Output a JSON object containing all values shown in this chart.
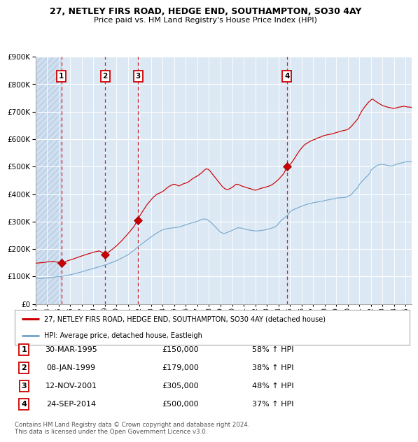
{
  "title1": "27, NETLEY FIRS ROAD, HEDGE END, SOUTHAMPTON, SO30 4AY",
  "title2": "Price paid vs. HM Land Registry's House Price Index (HPI)",
  "background_color": "#dce9f5",
  "grid_color": "#ffffff",
  "red_line_color": "#cc0000",
  "blue_line_color": "#7aaacc",
  "vline_color": "#cc0000",
  "purchase_dates_num": [
    1995.245,
    1999.025,
    2001.866,
    2014.731
  ],
  "purchase_prices": [
    150000,
    179000,
    305000,
    500000
  ],
  "purchase_labels": [
    "1",
    "2",
    "3",
    "4"
  ],
  "table_rows": [
    {
      "num": "1",
      "date": "30-MAR-1995",
      "price": "£150,000",
      "pct": "58% ↑ HPI"
    },
    {
      "num": "2",
      "date": "08-JAN-1999",
      "price": "£179,000",
      "pct": "38% ↑ HPI"
    },
    {
      "num": "3",
      "date": "12-NOV-2001",
      "price": "£305,000",
      "pct": "48% ↑ HPI"
    },
    {
      "num": "4",
      "date": "24-SEP-2014",
      "price": "£500,000",
      "pct": "37% ↑ HPI"
    }
  ],
  "legend1": "27, NETLEY FIRS ROAD, HEDGE END, SOUTHAMPTON, SO30 4AY (detached house)",
  "legend2": "HPI: Average price, detached house, Eastleigh",
  "footer": "Contains HM Land Registry data © Crown copyright and database right 2024.\nThis data is licensed under the Open Government Licence v3.0.",
  "ylim": [
    0,
    900000
  ],
  "xstart": 1993.0,
  "xend": 2025.5,
  "hpi_keypoints": [
    [
      1993.0,
      93000
    ],
    [
      1993.5,
      94000
    ],
    [
      1994.0,
      96000
    ],
    [
      1994.5,
      98000
    ],
    [
      1995.0,
      100000
    ],
    [
      1995.5,
      103000
    ],
    [
      1996.0,
      108000
    ],
    [
      1996.5,
      113000
    ],
    [
      1997.0,
      118000
    ],
    [
      1997.5,
      124000
    ],
    [
      1998.0,
      130000
    ],
    [
      1998.5,
      137000
    ],
    [
      1999.0,
      142000
    ],
    [
      1999.5,
      150000
    ],
    [
      2000.0,
      158000
    ],
    [
      2000.5,
      168000
    ],
    [
      2001.0,
      180000
    ],
    [
      2001.5,
      196000
    ],
    [
      2002.0,
      213000
    ],
    [
      2002.5,
      228000
    ],
    [
      2003.0,
      243000
    ],
    [
      2003.5,
      258000
    ],
    [
      2004.0,
      270000
    ],
    [
      2004.5,
      275000
    ],
    [
      2005.0,
      278000
    ],
    [
      2005.5,
      282000
    ],
    [
      2006.0,
      289000
    ],
    [
      2006.5,
      296000
    ],
    [
      2007.0,
      302000
    ],
    [
      2007.3,
      308000
    ],
    [
      2007.6,
      312000
    ],
    [
      2007.9,
      308000
    ],
    [
      2008.2,
      298000
    ],
    [
      2008.5,
      285000
    ],
    [
      2008.8,
      272000
    ],
    [
      2009.0,
      263000
    ],
    [
      2009.3,
      258000
    ],
    [
      2009.6,
      263000
    ],
    [
      2009.9,
      268000
    ],
    [
      2010.2,
      274000
    ],
    [
      2010.5,
      280000
    ],
    [
      2010.8,
      278000
    ],
    [
      2011.0,
      275000
    ],
    [
      2011.3,
      272000
    ],
    [
      2011.6,
      270000
    ],
    [
      2011.9,
      268000
    ],
    [
      2012.0,
      267000
    ],
    [
      2012.3,
      268000
    ],
    [
      2012.6,
      270000
    ],
    [
      2012.9,
      272000
    ],
    [
      2013.0,
      273000
    ],
    [
      2013.3,
      276000
    ],
    [
      2013.6,
      280000
    ],
    [
      2013.9,
      288000
    ],
    [
      2014.0,
      295000
    ],
    [
      2014.3,
      308000
    ],
    [
      2014.6,
      318000
    ],
    [
      2014.9,
      330000
    ],
    [
      2015.0,
      338000
    ],
    [
      2015.3,
      345000
    ],
    [
      2015.6,
      350000
    ],
    [
      2015.9,
      355000
    ],
    [
      2016.0,
      358000
    ],
    [
      2016.3,
      362000
    ],
    [
      2016.6,
      366000
    ],
    [
      2016.9,
      368000
    ],
    [
      2017.0,
      370000
    ],
    [
      2017.3,
      372000
    ],
    [
      2017.6,
      374000
    ],
    [
      2017.9,
      376000
    ],
    [
      2018.0,
      378000
    ],
    [
      2018.3,
      380000
    ],
    [
      2018.6,
      383000
    ],
    [
      2018.9,
      385000
    ],
    [
      2019.0,
      387000
    ],
    [
      2019.3,
      388000
    ],
    [
      2019.6,
      389000
    ],
    [
      2019.9,
      391000
    ],
    [
      2020.0,
      393000
    ],
    [
      2020.3,
      400000
    ],
    [
      2020.6,
      415000
    ],
    [
      2020.9,
      428000
    ],
    [
      2021.0,
      438000
    ],
    [
      2021.3,
      452000
    ],
    [
      2021.6,
      465000
    ],
    [
      2021.9,
      478000
    ],
    [
      2022.0,
      490000
    ],
    [
      2022.3,
      500000
    ],
    [
      2022.6,
      508000
    ],
    [
      2022.9,
      510000
    ],
    [
      2023.0,
      510000
    ],
    [
      2023.3,
      508000
    ],
    [
      2023.6,
      505000
    ],
    [
      2023.9,
      505000
    ],
    [
      2024.0,
      508000
    ],
    [
      2024.3,
      512000
    ],
    [
      2024.6,
      515000
    ],
    [
      2024.9,
      518000
    ],
    [
      2025.0,
      520000
    ],
    [
      2025.5,
      522000
    ]
  ],
  "red_keypoints": [
    [
      1993.0,
      148000
    ],
    [
      1993.5,
      150000
    ],
    [
      1994.0,
      153000
    ],
    [
      1994.5,
      156000
    ],
    [
      1995.245,
      150000
    ],
    [
      1995.5,
      152000
    ],
    [
      1996.0,
      160000
    ],
    [
      1996.5,
      167000
    ],
    [
      1997.0,
      174000
    ],
    [
      1997.5,
      181000
    ],
    [
      1998.0,
      188000
    ],
    [
      1998.5,
      192000
    ],
    [
      1999.025,
      179000
    ],
    [
      1999.2,
      182000
    ],
    [
      1999.5,
      192000
    ],
    [
      2000.0,
      208000
    ],
    [
      2000.5,
      228000
    ],
    [
      2001.0,
      252000
    ],
    [
      2001.5,
      277000
    ],
    [
      2001.866,
      305000
    ],
    [
      2002.0,
      318000
    ],
    [
      2002.3,
      338000
    ],
    [
      2002.6,
      358000
    ],
    [
      2002.9,
      373000
    ],
    [
      2003.2,
      388000
    ],
    [
      2003.5,
      398000
    ],
    [
      2003.8,
      403000
    ],
    [
      2004.0,
      408000
    ],
    [
      2004.2,
      415000
    ],
    [
      2004.4,
      422000
    ],
    [
      2004.6,
      428000
    ],
    [
      2004.8,
      432000
    ],
    [
      2005.0,
      435000
    ],
    [
      2005.2,
      432000
    ],
    [
      2005.4,
      428000
    ],
    [
      2005.6,
      432000
    ],
    [
      2005.8,
      436000
    ],
    [
      2006.0,
      438000
    ],
    [
      2006.2,
      442000
    ],
    [
      2006.4,
      448000
    ],
    [
      2006.6,
      455000
    ],
    [
      2006.8,
      460000
    ],
    [
      2007.0,
      465000
    ],
    [
      2007.2,
      472000
    ],
    [
      2007.4,
      478000
    ],
    [
      2007.6,
      488000
    ],
    [
      2007.8,
      492000
    ],
    [
      2008.0,
      488000
    ],
    [
      2008.2,
      478000
    ],
    [
      2008.5,
      462000
    ],
    [
      2008.8,
      445000
    ],
    [
      2009.0,
      435000
    ],
    [
      2009.2,
      425000
    ],
    [
      2009.4,
      418000
    ],
    [
      2009.6,
      415000
    ],
    [
      2009.8,
      418000
    ],
    [
      2010.0,
      422000
    ],
    [
      2010.2,
      430000
    ],
    [
      2010.4,
      435000
    ],
    [
      2010.6,
      432000
    ],
    [
      2010.8,
      428000
    ],
    [
      2011.0,
      425000
    ],
    [
      2011.2,
      422000
    ],
    [
      2011.4,
      420000
    ],
    [
      2011.6,
      418000
    ],
    [
      2011.8,
      415000
    ],
    [
      2012.0,
      413000
    ],
    [
      2012.2,
      415000
    ],
    [
      2012.4,
      418000
    ],
    [
      2012.6,
      420000
    ],
    [
      2012.8,
      422000
    ],
    [
      2013.0,
      425000
    ],
    [
      2013.2,
      428000
    ],
    [
      2013.4,
      432000
    ],
    [
      2013.6,
      438000
    ],
    [
      2013.8,
      445000
    ],
    [
      2014.0,
      452000
    ],
    [
      2014.2,
      462000
    ],
    [
      2014.5,
      478000
    ],
    [
      2014.731,
      500000
    ],
    [
      2014.9,
      502000
    ],
    [
      2015.0,
      508000
    ],
    [
      2015.2,
      518000
    ],
    [
      2015.4,
      530000
    ],
    [
      2015.6,
      545000
    ],
    [
      2015.8,
      558000
    ],
    [
      2016.0,
      568000
    ],
    [
      2016.2,
      578000
    ],
    [
      2016.4,
      585000
    ],
    [
      2016.6,
      590000
    ],
    [
      2016.8,
      595000
    ],
    [
      2017.0,
      598000
    ],
    [
      2017.2,
      600000
    ],
    [
      2017.4,
      605000
    ],
    [
      2017.6,
      608000
    ],
    [
      2017.8,
      612000
    ],
    [
      2018.0,
      615000
    ],
    [
      2018.2,
      618000
    ],
    [
      2018.5,
      622000
    ],
    [
      2018.8,
      625000
    ],
    [
      2019.0,
      628000
    ],
    [
      2019.3,
      632000
    ],
    [
      2019.6,
      635000
    ],
    [
      2019.9,
      638000
    ],
    [
      2020.0,
      640000
    ],
    [
      2020.3,
      650000
    ],
    [
      2020.6,
      665000
    ],
    [
      2020.9,
      680000
    ],
    [
      2021.0,
      690000
    ],
    [
      2021.2,
      705000
    ],
    [
      2021.4,
      718000
    ],
    [
      2021.6,
      728000
    ],
    [
      2021.8,
      738000
    ],
    [
      2022.0,
      745000
    ],
    [
      2022.1,
      750000
    ],
    [
      2022.2,
      748000
    ],
    [
      2022.3,
      745000
    ],
    [
      2022.5,
      740000
    ],
    [
      2022.7,
      735000
    ],
    [
      2022.9,
      730000
    ],
    [
      2023.0,
      728000
    ],
    [
      2023.2,
      725000
    ],
    [
      2023.4,
      722000
    ],
    [
      2023.6,
      720000
    ],
    [
      2023.8,
      718000
    ],
    [
      2024.0,
      718000
    ],
    [
      2024.3,
      720000
    ],
    [
      2024.6,
      722000
    ],
    [
      2024.9,
      724000
    ],
    [
      2025.0,
      722000
    ],
    [
      2025.5,
      720000
    ]
  ]
}
